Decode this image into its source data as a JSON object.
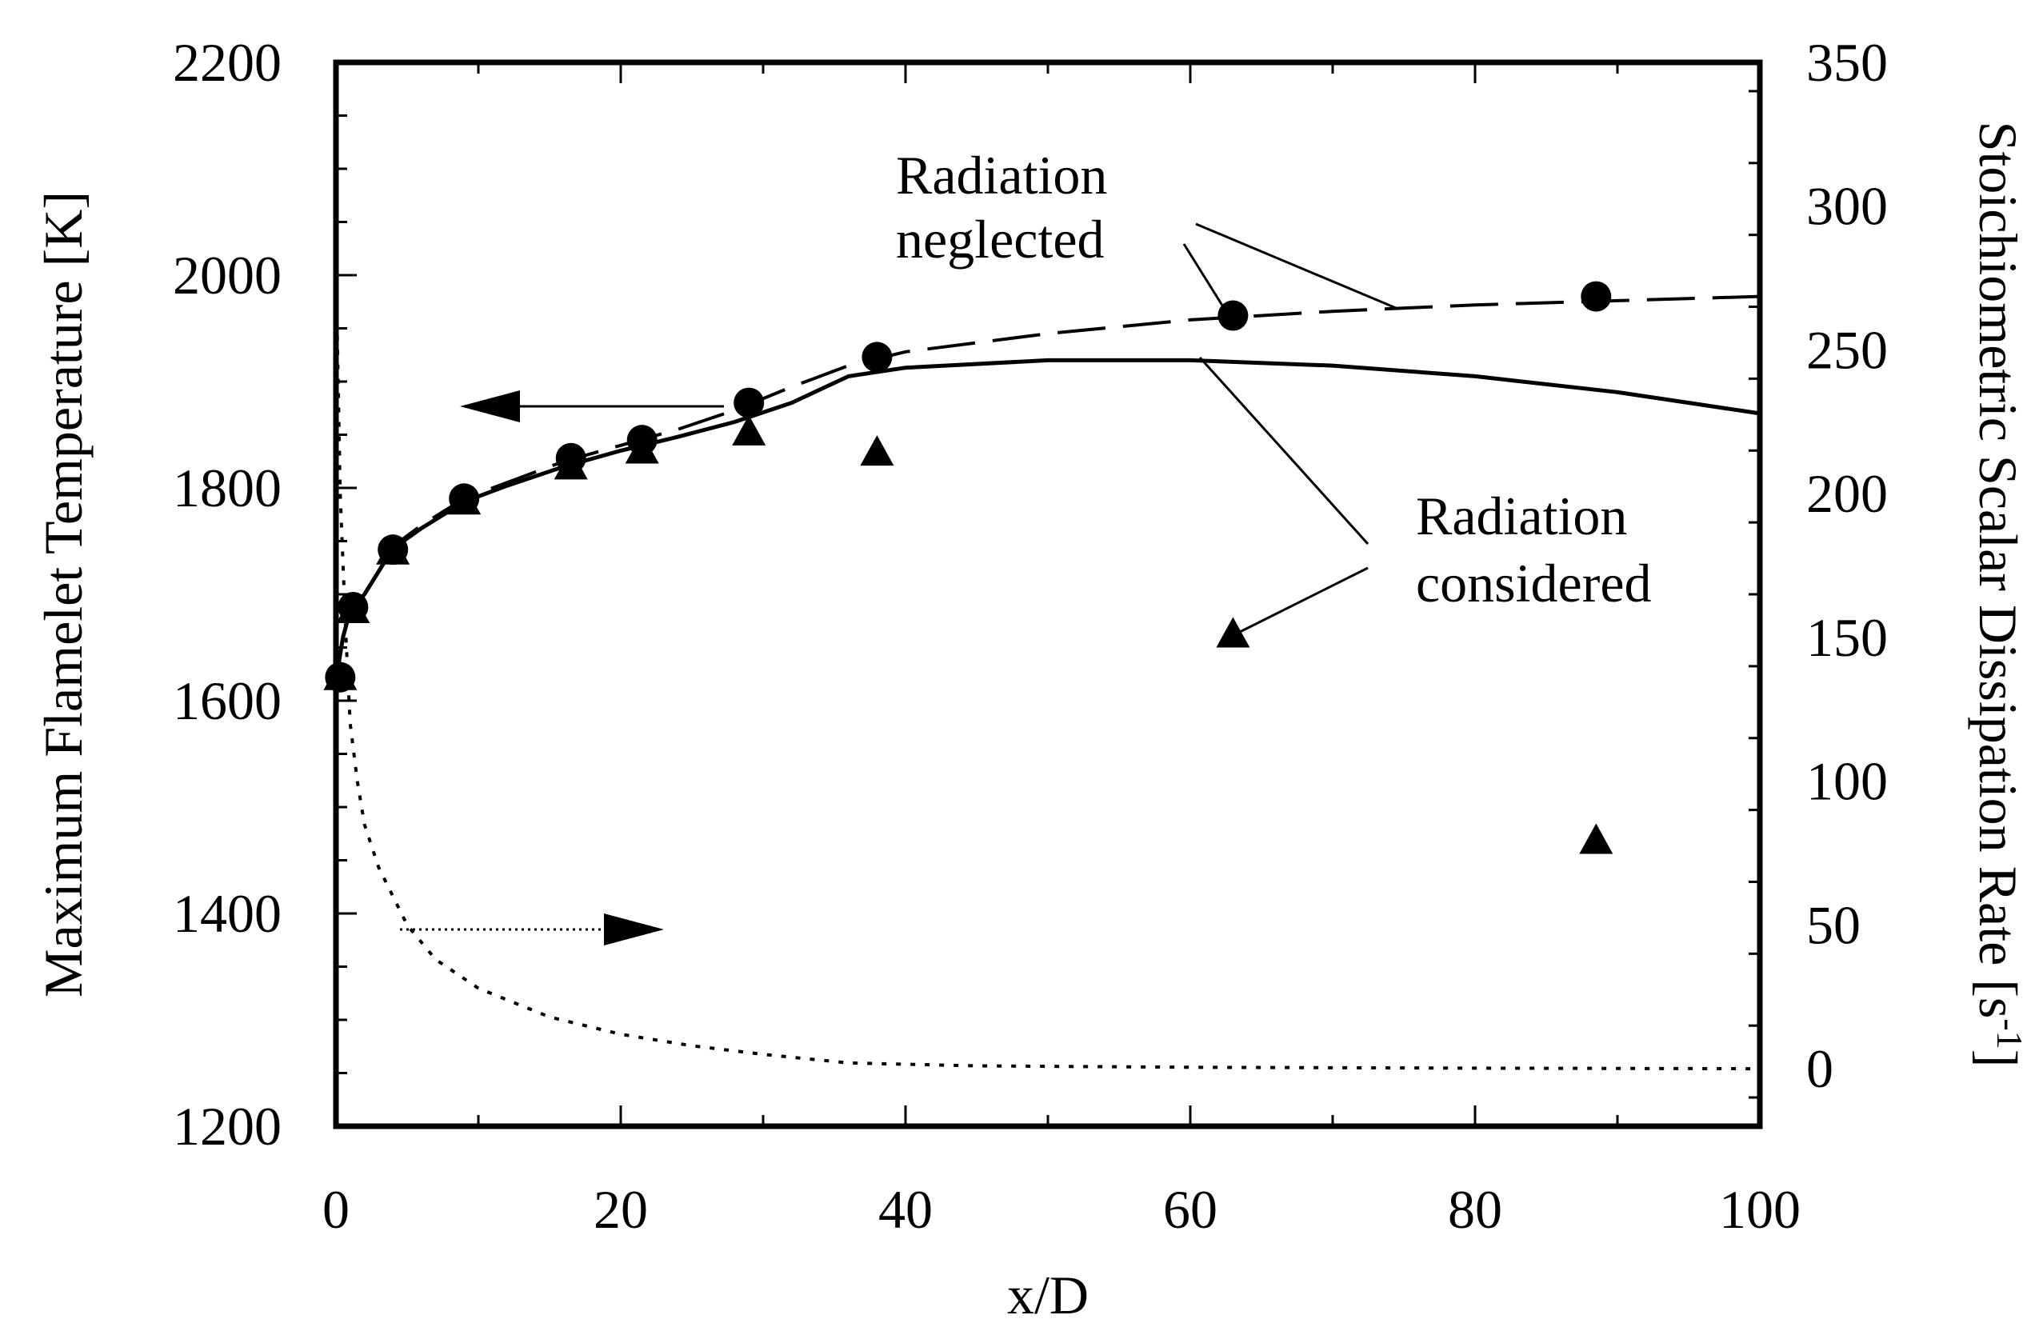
{
  "chart_data": {
    "type": "line",
    "xlabel": "x/D",
    "ylabel_left": "Maximum Flamelet Temperature [K]",
    "ylabel_right_main": "Stoichiometric Scalar Dissipation Rate [s",
    "ylabel_right_sup": "-1",
    "ylabel_right_end": "]",
    "xlim": [
      0,
      100
    ],
    "ylim_left": [
      1200,
      2200
    ],
    "ylim_right": [
      -20,
      350
    ],
    "x_ticks": [
      "0",
      "20",
      "40",
      "60",
      "80",
      "100"
    ],
    "y_left_ticks": [
      "1200",
      "1400",
      "1600",
      "1800",
      "2000",
      "2200"
    ],
    "y_right_ticks": [
      "0",
      "50",
      "100",
      "150",
      "200",
      "250",
      "300",
      "350"
    ],
    "series": [
      {
        "name": "Radiation neglected (dashed line)",
        "axis": "left",
        "style": "dashed",
        "x": [
          0,
          0.5,
          1,
          2,
          4,
          6,
          9,
          12,
          16,
          20,
          24,
          28,
          32,
          34,
          36,
          40,
          50,
          60,
          70,
          80,
          90,
          100
        ],
        "y": [
          1620,
          1660,
          1685,
          1700,
          1745,
          1765,
          1790,
          1805,
          1825,
          1840,
          1855,
          1873,
          1895,
          1905,
          1915,
          1928,
          1945,
          1958,
          1966,
          1972,
          1976,
          1980
        ]
      },
      {
        "name": "Radiation considered (solid line)",
        "axis": "left",
        "style": "solid",
        "x": [
          0,
          0.5,
          1,
          2,
          4,
          6,
          9,
          12,
          16,
          20,
          24,
          28,
          32,
          36,
          40,
          50,
          60,
          70,
          80,
          90,
          100
        ],
        "y": [
          1620,
          1660,
          1685,
          1700,
          1743,
          1762,
          1787,
          1802,
          1820,
          1835,
          1848,
          1862,
          1880,
          1905,
          1913,
          1920,
          1920,
          1915,
          1905,
          1890,
          1870
        ]
      },
      {
        "name": "Scalar dissipation rate (dotted line)",
        "axis": "right",
        "style": "dotted",
        "x": [
          0,
          0.3,
          0.7,
          1,
          1.5,
          2,
          3,
          5,
          7,
          10,
          15,
          20,
          25,
          30,
          36,
          45,
          60,
          80,
          100
        ],
        "y": [
          280,
          200,
          150,
          120,
          100,
          85,
          70,
          50,
          38,
          28,
          18,
          12,
          8,
          5,
          2,
          1,
          0.5,
          0.2,
          0
        ]
      },
      {
        "name": "Radiation neglected (circles)",
        "axis": "left",
        "marker": "circle",
        "x": [
          0.3,
          1.2,
          4,
          9,
          16.5,
          21.5,
          29,
          38,
          63,
          88.5
        ],
        "y": [
          1622,
          1688,
          1742,
          1790,
          1828,
          1845,
          1880,
          1923,
          1962,
          1980
        ]
      },
      {
        "name": "Radiation considered (triangles)",
        "axis": "left",
        "marker": "triangle",
        "x": [
          0.3,
          1.2,
          4,
          9,
          16.5,
          21.5,
          29,
          38,
          63,
          88.5
        ],
        "y": [
          1622,
          1685,
          1740,
          1787,
          1820,
          1835,
          1852,
          1833,
          1662,
          1468
        ]
      }
    ],
    "annotations": {
      "neglected_line1": "Radiation",
      "neglected_line2": "neglected",
      "considered_line1": "Radiation",
      "considered_line2": "considered"
    }
  }
}
